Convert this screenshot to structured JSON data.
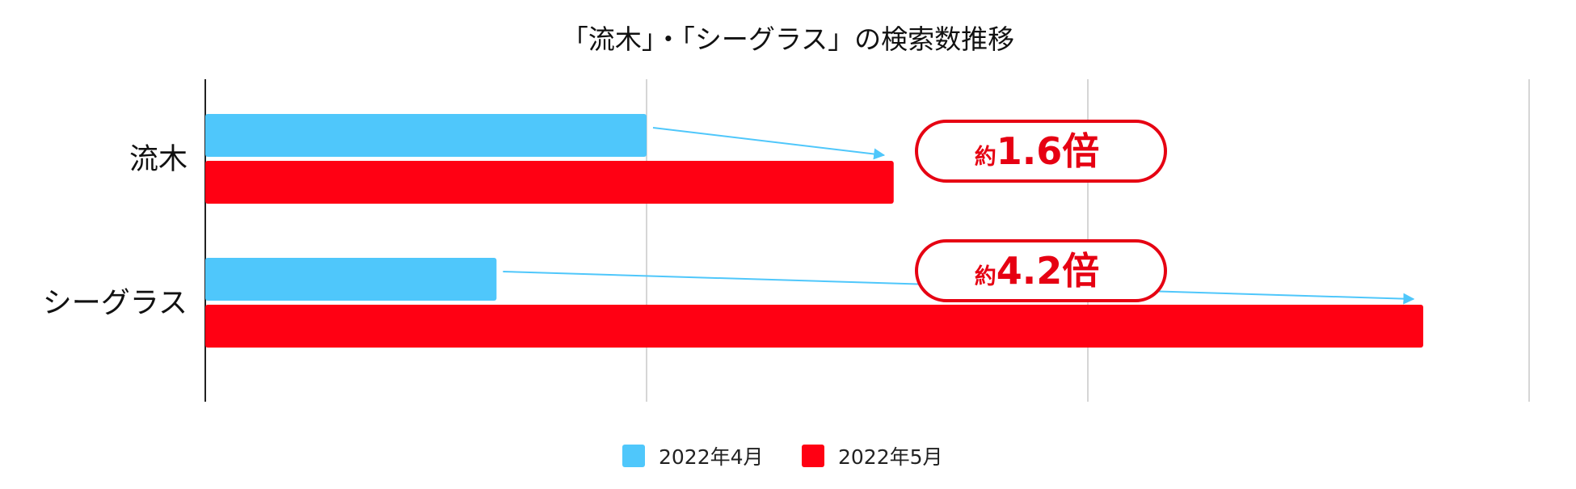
{
  "chart_data": {
    "type": "bar",
    "orientation": "horizontal",
    "title": "「流木」・「シーグラス」の検索数推移",
    "categories": [
      "流木",
      "シーグラス"
    ],
    "series": [
      {
        "name": "2022年4月",
        "color": "#4fc7fb",
        "values": [
          1.0,
          0.66
        ]
      },
      {
        "name": "2022年5月",
        "color": "#ff0013",
        "values": [
          1.56,
          2.76
        ]
      }
    ],
    "xlim": [
      0,
      3
    ],
    "grid": true,
    "axis_tick_labels_shown": false,
    "legend": "bottom",
    "annotations": [
      {
        "category": "流木",
        "prefix": "約",
        "text": "1.6倍"
      },
      {
        "category": "シーグラス",
        "prefix": "約",
        "text": "4.2倍"
      }
    ],
    "annotation_color": "#e60012",
    "arrow_color": "#4fc7fb"
  }
}
